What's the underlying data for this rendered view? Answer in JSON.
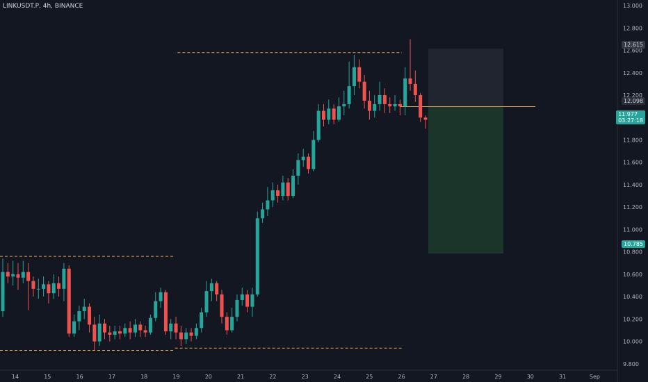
{
  "header": {
    "symbol": "LINKUSDT.P, 4h, BINANCE"
  },
  "colors": {
    "up": "#26a69a",
    "down": "#ef5350",
    "bg": "#131722",
    "grid": "#2a2e39",
    "dashed": "#e0a045",
    "target": "#1f3b2d",
    "stop": "#2a2e39"
  },
  "price_labels": {
    "top": "12.615",
    "current_line": "12.098",
    "last_price": "11.977",
    "countdown": "03:27:18",
    "bottom": "10.785"
  },
  "chart_data": {
    "type": "candlestick",
    "title": "LINKUSDT.P, 4h, BINANCE",
    "y_ticks": [
      "13.000",
      "12.800",
      "12.600",
      "12.400",
      "12.200",
      "12.000",
      "11.800",
      "11.600",
      "11.400",
      "11.200",
      "11.000",
      "10.800",
      "10.600",
      "10.400",
      "10.200",
      "10.000",
      "9.800"
    ],
    "x_ticks": [
      "14",
      "15",
      "16",
      "17",
      "18",
      "19",
      "20",
      "21",
      "22",
      "23",
      "24",
      "25",
      "26",
      "27",
      "28",
      "29",
      "30",
      "31",
      "Sep"
    ],
    "ylim": [
      9.65,
      13.05
    ],
    "candles": [
      [
        10.27,
        10.62,
        10.74,
        10.22
      ],
      [
        10.62,
        10.58,
        10.7,
        10.52
      ],
      [
        10.58,
        10.6,
        10.72,
        10.5
      ],
      [
        10.6,
        10.57,
        10.7,
        10.46
      ],
      [
        10.57,
        10.62,
        10.72,
        10.52
      ],
      [
        10.62,
        10.54,
        10.7,
        10.28
      ],
      [
        10.54,
        10.47,
        10.58,
        10.4
      ],
      [
        10.47,
        10.47,
        10.56,
        10.38
      ],
      [
        10.47,
        10.51,
        10.58,
        10.4
      ],
      [
        10.51,
        10.43,
        10.54,
        10.34
      ],
      [
        10.43,
        10.52,
        10.6,
        10.38
      ],
      [
        10.52,
        10.47,
        10.58,
        10.4
      ],
      [
        10.47,
        10.65,
        10.7,
        10.36
      ],
      [
        10.65,
        10.07,
        10.68,
        10.04
      ],
      [
        10.07,
        10.18,
        10.24,
        10.04
      ],
      [
        10.18,
        10.27,
        10.32,
        10.1
      ],
      [
        10.27,
        10.31,
        10.38,
        10.2
      ],
      [
        10.31,
        10.15,
        10.34,
        10.08
      ],
      [
        10.15,
        10.0,
        10.22,
        9.92
      ],
      [
        10.0,
        10.16,
        10.24,
        9.96
      ],
      [
        10.16,
        10.08,
        10.2,
        10.02
      ],
      [
        10.08,
        10.06,
        10.14,
        10.0
      ],
      [
        10.06,
        10.09,
        10.14,
        10.02
      ],
      [
        10.09,
        10.07,
        10.14,
        10.02
      ],
      [
        10.07,
        10.12,
        10.16,
        10.04
      ],
      [
        10.12,
        10.08,
        10.18,
        10.02
      ],
      [
        10.08,
        10.15,
        10.2,
        10.04
      ],
      [
        10.15,
        10.1,
        10.18,
        10.04
      ],
      [
        10.1,
        10.08,
        10.14,
        10.04
      ],
      [
        10.08,
        10.21,
        10.24,
        10.06
      ],
      [
        10.21,
        10.36,
        10.44,
        10.18
      ],
      [
        10.36,
        10.44,
        10.48,
        10.3
      ],
      [
        10.44,
        10.09,
        10.46,
        10.06
      ],
      [
        10.09,
        10.16,
        10.2,
        10.02
      ],
      [
        10.16,
        10.08,
        10.22,
        10.02
      ],
      [
        10.08,
        10.02,
        10.14,
        9.96
      ],
      [
        10.02,
        10.08,
        10.12,
        9.98
      ],
      [
        10.08,
        10.05,
        10.12,
        10.0
      ],
      [
        10.05,
        10.12,
        10.16,
        10.02
      ],
      [
        10.12,
        10.26,
        10.3,
        10.08
      ],
      [
        10.26,
        10.45,
        10.54,
        10.22
      ],
      [
        10.45,
        10.52,
        10.56,
        10.36
      ],
      [
        10.52,
        10.42,
        10.54,
        10.36
      ],
      [
        10.42,
        10.22,
        10.46,
        10.16
      ],
      [
        10.22,
        10.1,
        10.26,
        10.06
      ],
      [
        10.1,
        10.22,
        10.3,
        10.08
      ],
      [
        10.22,
        10.37,
        10.42,
        10.18
      ],
      [
        10.37,
        10.42,
        10.48,
        10.32
      ],
      [
        10.42,
        10.31,
        10.46,
        10.26
      ],
      [
        10.31,
        10.42,
        10.48,
        10.22
      ],
      [
        10.42,
        11.1,
        11.16,
        10.4
      ],
      [
        11.1,
        11.18,
        11.24,
        11.06
      ],
      [
        11.18,
        11.26,
        11.38,
        11.12
      ],
      [
        11.26,
        11.35,
        11.42,
        11.2
      ],
      [
        11.35,
        11.3,
        11.4,
        11.24
      ],
      [
        11.3,
        11.42,
        11.48,
        11.26
      ],
      [
        11.42,
        11.3,
        11.46,
        11.26
      ],
      [
        11.3,
        11.48,
        11.54,
        11.28
      ],
      [
        11.48,
        11.62,
        11.68,
        11.4
      ],
      [
        11.62,
        11.65,
        11.72,
        11.56
      ],
      [
        11.65,
        11.54,
        11.68,
        11.5
      ],
      [
        11.54,
        11.8,
        11.88,
        11.52
      ],
      [
        11.8,
        12.06,
        12.12,
        11.78
      ],
      [
        12.06,
        11.98,
        12.12,
        11.92
      ],
      [
        11.98,
        12.08,
        12.16,
        11.94
      ],
      [
        12.08,
        11.98,
        12.12,
        11.94
      ],
      [
        11.98,
        12.1,
        12.18,
        11.96
      ],
      [
        12.1,
        12.12,
        12.24,
        12.02
      ],
      [
        12.12,
        12.28,
        12.5,
        12.08
      ],
      [
        12.28,
        12.45,
        12.56,
        12.2
      ],
      [
        12.45,
        12.32,
        12.52,
        12.26
      ],
      [
        12.32,
        12.15,
        12.38,
        12.08
      ],
      [
        12.15,
        12.06,
        12.24,
        11.98
      ],
      [
        12.06,
        12.12,
        12.2,
        12.0
      ],
      [
        12.12,
        12.2,
        12.32,
        12.06
      ],
      [
        12.2,
        12.12,
        12.26,
        12.04
      ],
      [
        12.12,
        12.1,
        12.18,
        12.04
      ],
      [
        12.1,
        12.12,
        12.2,
        12.06
      ],
      [
        12.12,
        12.1,
        12.16,
        12.02
      ],
      [
        12.1,
        12.35,
        12.45,
        12.02
      ],
      [
        12.35,
        12.3,
        12.7,
        12.24
      ],
      [
        12.3,
        12.2,
        12.42,
        12.14
      ],
      [
        12.2,
        12.0,
        12.22,
        11.96
      ],
      [
        12.0,
        11.98,
        12.02,
        11.9
      ]
    ],
    "levels": [
      {
        "price": 12.58,
        "from": 0.274,
        "to": 0.62
      },
      {
        "price": 10.76,
        "from": 0.0,
        "to": 0.27
      },
      {
        "price": 9.92,
        "from": 0.0,
        "to": 0.27
      },
      {
        "price": 9.94,
        "from": 0.27,
        "to": 0.62
      }
    ],
    "position": {
      "entry": 12.098,
      "stop": 12.615,
      "target": 10.785
    }
  }
}
